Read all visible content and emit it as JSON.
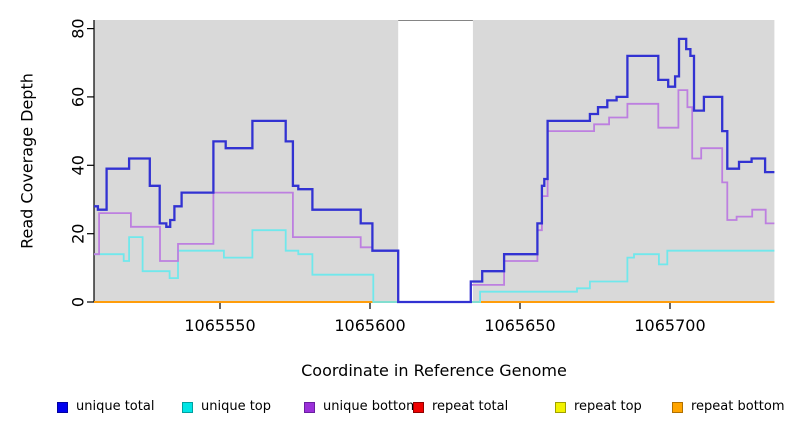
{
  "figure": {
    "y_axis": {
      "label": "Read Coverage Depth",
      "ticks": [
        0,
        20,
        40,
        60,
        80
      ]
    },
    "x_axis": {
      "label": "Coordinate in Reference Genome",
      "ticks": [
        1065550,
        1065600,
        1065650,
        1065700
      ]
    }
  },
  "chart_data": {
    "type": "line",
    "subtype": "step-coverage",
    "title": "",
    "xlabel": "Coordinate in Reference Genome",
    "ylabel": "Read Coverage Depth",
    "x_range": [
      1065508,
      1065734.8
    ],
    "ylim": [
      0,
      80
    ],
    "x_ticks": [
      1065550,
      1065600,
      1065650,
      1065700
    ],
    "y_ticks": [
      0,
      20,
      40,
      60,
      80
    ],
    "grid": "off",
    "legend_position": "bottom",
    "plot_background": "#d9d9d9",
    "shaded_regions": [
      [
        1065508,
        1065609.4
      ],
      [
        1065634.3,
        1065734.8
      ]
    ],
    "gap_region": {
      "x": [
        1065609.4,
        1065634.3
      ],
      "fill": "#ffffff",
      "border_color": "#858585"
    },
    "series": [
      {
        "name": "repeat total",
        "color": "#ff0000",
        "width": 1.6,
        "steps": [
          [
            1065508,
            0
          ]
        ]
      },
      {
        "name": "repeat top",
        "color": "#ffff00",
        "width": 1.6,
        "steps": [
          [
            1065508,
            0
          ]
        ]
      },
      {
        "name": "repeat bottom",
        "color": "#ff9d0b",
        "width": 2,
        "steps": [
          [
            1065508,
            0
          ]
        ]
      },
      {
        "name": "unique top",
        "color": "#70e8ec",
        "width": 1.8,
        "steps": [
          [
            1065508,
            14
          ],
          [
            1065517.9,
            12
          ],
          [
            1065519.7,
            19
          ],
          [
            1065524.2,
            9
          ],
          [
            1065533.2,
            7
          ],
          [
            1065536,
            15
          ],
          [
            1065551.3,
            13
          ],
          [
            1065560.8,
            21
          ],
          [
            1065571.9,
            15
          ],
          [
            1065576.1,
            14
          ],
          [
            1065580.8,
            8
          ],
          [
            1065601.1,
            0
          ],
          [
            1065636.7,
            3
          ],
          [
            1065669,
            4
          ],
          [
            1065673.3,
            6
          ],
          [
            1065685.8,
            13
          ],
          [
            1065688,
            14
          ],
          [
            1065696.3,
            11
          ],
          [
            1065699.1,
            15
          ]
        ]
      },
      {
        "name": "unique bottom",
        "color": "#bd7fe0",
        "width": 1.8,
        "steps": [
          [
            1065508,
            14
          ],
          [
            1065509.7,
            26
          ],
          [
            1065520.3,
            22
          ],
          [
            1065530,
            12
          ],
          [
            1065536,
            17
          ],
          [
            1065547.8,
            32
          ],
          [
            1065574.3,
            19
          ],
          [
            1065596.9,
            16
          ],
          [
            1065600.8,
            15
          ],
          [
            1065609.4,
            0
          ],
          [
            1065633.6,
            5
          ],
          [
            1065644.7,
            12
          ],
          [
            1065655.8,
            21
          ],
          [
            1065657.3,
            31
          ],
          [
            1065659.2,
            50
          ],
          [
            1065674.7,
            52
          ],
          [
            1065679.7,
            54
          ],
          [
            1065685.8,
            58
          ],
          [
            1065696.1,
            51
          ],
          [
            1065702.8,
            62
          ],
          [
            1065705.8,
            57
          ],
          [
            1065707.4,
            42
          ],
          [
            1065710.4,
            45
          ],
          [
            1065717.4,
            35
          ],
          [
            1065719.1,
            24
          ],
          [
            1065722.2,
            25
          ],
          [
            1065727.4,
            27
          ],
          [
            1065731.9,
            23
          ]
        ]
      },
      {
        "name": "unique total",
        "color": "#3232d2",
        "width": 2.3,
        "steps": [
          [
            1065508,
            28
          ],
          [
            1065509.3,
            27
          ],
          [
            1065512.2,
            39
          ],
          [
            1065519.7,
            42
          ],
          [
            1065526.6,
            34
          ],
          [
            1065529.9,
            23
          ],
          [
            1065532.1,
            22
          ],
          [
            1065533.4,
            24
          ],
          [
            1065534.8,
            28
          ],
          [
            1065537.2,
            32
          ],
          [
            1065547.8,
            47
          ],
          [
            1065551.9,
            45
          ],
          [
            1065560.8,
            53
          ],
          [
            1065571.9,
            47
          ],
          [
            1065574.3,
            34
          ],
          [
            1065576.1,
            33
          ],
          [
            1065580.8,
            27
          ],
          [
            1065596.9,
            23
          ],
          [
            1065600.8,
            15
          ],
          [
            1065609.4,
            0
          ],
          [
            1065633.6,
            6
          ],
          [
            1065637.4,
            9
          ],
          [
            1065644.7,
            14
          ],
          [
            1065655.8,
            23
          ],
          [
            1065657.3,
            34
          ],
          [
            1065658.1,
            36
          ],
          [
            1065659.2,
            53
          ],
          [
            1065673.3,
            55
          ],
          [
            1065676,
            57
          ],
          [
            1065679.1,
            59
          ],
          [
            1065682.2,
            60
          ],
          [
            1065685.8,
            72
          ],
          [
            1065696.1,
            65
          ],
          [
            1065699.4,
            63
          ],
          [
            1065701.7,
            66
          ],
          [
            1065703,
            77
          ],
          [
            1065705.4,
            74
          ],
          [
            1065706.8,
            72
          ],
          [
            1065708,
            56
          ],
          [
            1065711.3,
            60
          ],
          [
            1065717.4,
            50
          ],
          [
            1065719.1,
            39
          ],
          [
            1065723,
            41
          ],
          [
            1065727.2,
            42
          ],
          [
            1065731.7,
            38
          ]
        ]
      }
    ]
  },
  "legend": {
    "items": [
      {
        "label": "unique total",
        "fill": "#0000ee",
        "border": "#0000a0"
      },
      {
        "label": "unique top",
        "fill": "#00e5e5",
        "border": "#00a0a0"
      },
      {
        "label": "unique bottom",
        "fill": "#9b30d9",
        "border": "#6a1fa0"
      },
      {
        "label": "repeat total",
        "fill": "#ee0000",
        "border": "#900000"
      },
      {
        "label": "repeat top",
        "fill": "#f2f200",
        "border": "#a0a000"
      },
      {
        "label": "repeat bottom",
        "fill": "#ffa500",
        "border": "#b07000"
      }
    ]
  }
}
